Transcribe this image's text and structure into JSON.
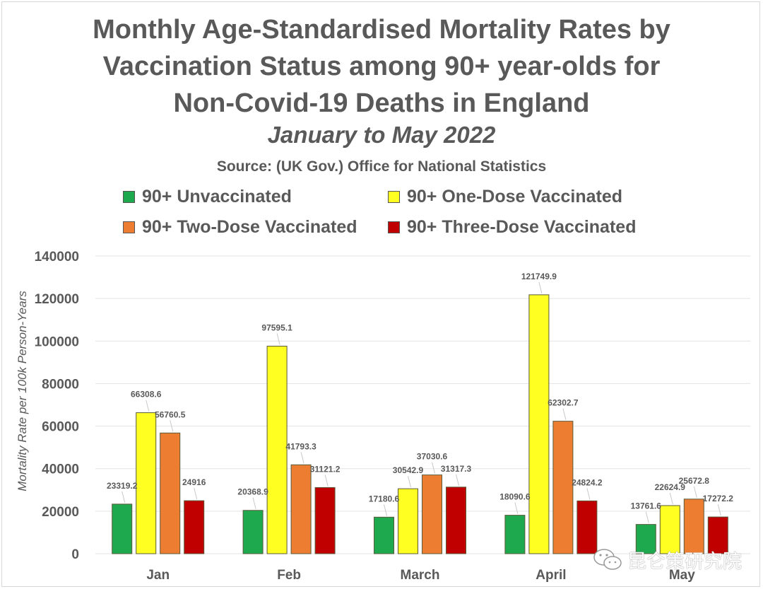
{
  "title_lines": [
    "Monthly Age-Standardised Mortality Rates by",
    "Vaccination Status among 90+ year-olds for",
    "Non-Covid-19 Deaths in England"
  ],
  "subtitle": "January to May 2022",
  "source": "Source: (UK Gov.) Office for National Statistics",
  "watermark": {
    "text": "昆仑策研究院",
    "icon": "wechat-icon"
  },
  "chart_data": {
    "type": "bar",
    "title": "Monthly Age-Standardised Mortality Rates by Vaccination Status among 90+ year-olds for Non-Covid-19 Deaths in England",
    "subtitle": "January to May 2022",
    "xlabel": "",
    "ylabel": "Mortality Rate per 100k Person-Years",
    "ylim": [
      0,
      140000
    ],
    "yticks": [
      0,
      20000,
      40000,
      60000,
      80000,
      100000,
      120000,
      140000
    ],
    "grid": true,
    "legend_position": "top",
    "categories": [
      "Jan",
      "Feb",
      "March",
      "April",
      "May"
    ],
    "series": [
      {
        "name": "90+ Unvaccinated",
        "color": "#1fa94f",
        "values": [
          23319.2,
          20368.9,
          17180.6,
          18090.6,
          13761.6
        ],
        "labels": [
          "23319.2",
          "20368.9",
          "17180.6",
          "18090.6",
          "13761.6"
        ]
      },
      {
        "name": "90+ One-Dose Vaccinated",
        "color": "#ffff21",
        "values": [
          66308.6,
          97595.1,
          30542.9,
          121749.9,
          22624.9
        ],
        "labels": [
          "66308.6",
          "97595.1",
          "30542.9",
          "121749.9",
          "22624.9"
        ]
      },
      {
        "name": "90+ Two-Dose Vaccinated",
        "color": "#ed7d31",
        "values": [
          56760.5,
          41793.3,
          37030.6,
          62302.7,
          25672.8
        ],
        "labels": [
          "56760.5",
          "41793.3",
          "37030.6",
          "62302.7",
          "25672.8"
        ]
      },
      {
        "name": "90+ Three-Dose Vaccinated",
        "color": "#c00000",
        "values": [
          24916,
          31121.2,
          31317.3,
          24824.2,
          17272.2
        ],
        "labels": [
          "24916",
          "31121.2",
          "31317.3",
          "24824.2",
          "17272.2"
        ]
      }
    ]
  }
}
